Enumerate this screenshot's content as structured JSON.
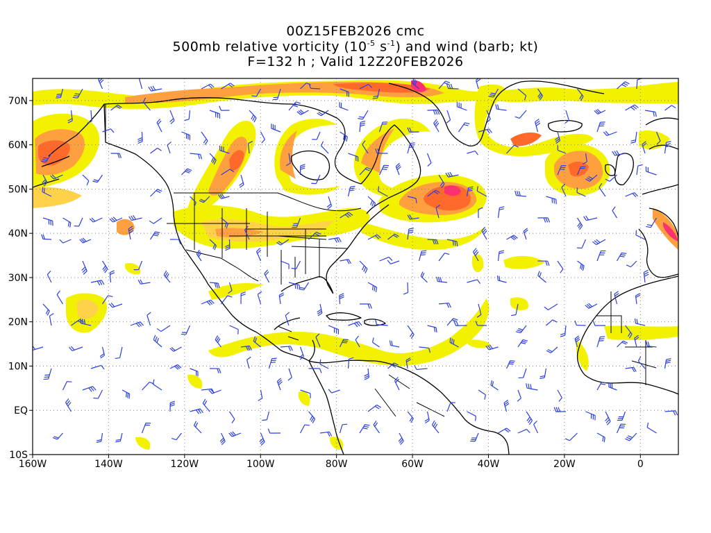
{
  "title": {
    "line1": "00Z15FEB2026 cmc",
    "line2_a": "500mb relative vorticity (10",
    "line2_exp1": "-5",
    "line2_b": " s",
    "line2_exp2": "-1",
    "line2_c": ") and wind (barb; kt)",
    "line3": "F=132 h ; Valid 12Z20FEB2026"
  },
  "map": {
    "lon_range": [
      -160,
      10
    ],
    "lat_range": [
      -10,
      75
    ],
    "lon_ticks": [
      {
        "value": -160,
        "label": "160W"
      },
      {
        "value": -140,
        "label": "140W"
      },
      {
        "value": -120,
        "label": "120W"
      },
      {
        "value": -100,
        "label": "100W"
      },
      {
        "value": -80,
        "label": "80W"
      },
      {
        "value": -60,
        "label": "60W"
      },
      {
        "value": -40,
        "label": "40W"
      },
      {
        "value": -20,
        "label": "20W"
      },
      {
        "value": 0,
        "label": "0"
      }
    ],
    "lat_ticks": [
      {
        "value": 70,
        "label": "70N"
      },
      {
        "value": 60,
        "label": "60N"
      },
      {
        "value": 50,
        "label": "50N"
      },
      {
        "value": 40,
        "label": "40N"
      },
      {
        "value": 30,
        "label": "30N"
      },
      {
        "value": 20,
        "label": "20N"
      },
      {
        "value": 10,
        "label": "10N"
      },
      {
        "value": 0,
        "label": "EQ"
      },
      {
        "value": -10,
        "label": "10S"
      }
    ],
    "grid": true,
    "colors": {
      "shade1": "#f2f200",
      "shade2": "#ffd24a",
      "shade3": "#ffa040",
      "shade4": "#ff6a2a",
      "shade5": "#ff3070",
      "barb": "#2a3fe0",
      "coast": "#000000",
      "grid": "#808080"
    },
    "vorticity_features": [
      {
        "name": "alaska-gulf",
        "lon": -150,
        "lat": 58,
        "level": 4
      },
      {
        "name": "canada-west",
        "lon": -106,
        "lat": 58,
        "level": 4
      },
      {
        "name": "central-us",
        "lon": -108,
        "lat": 42,
        "level": 3
      },
      {
        "name": "newfoundland-low",
        "lon": -50,
        "lat": 50,
        "level": 5
      },
      {
        "name": "greenland-south",
        "lon": -60,
        "lat": 72,
        "level": 5
      },
      {
        "name": "north-atlantic",
        "lon": -30,
        "lat": 60,
        "level": 4
      },
      {
        "name": "east-atlantic",
        "lon": -13,
        "lat": 52,
        "level": 3
      },
      {
        "name": "iberia",
        "lon": 8,
        "lat": 40,
        "level": 4
      },
      {
        "name": "hawaii-ne",
        "lon": -150,
        "lat": 22,
        "level": 2
      },
      {
        "name": "pacific-40n",
        "lon": -141,
        "lat": 41,
        "level": 3
      }
    ]
  }
}
